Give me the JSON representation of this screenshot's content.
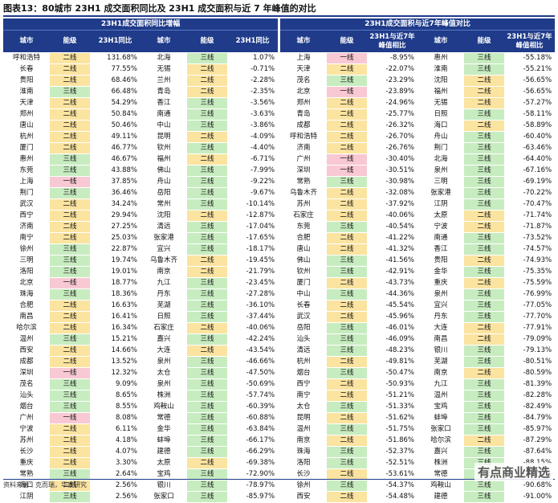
{
  "title": "图表13：80城市 23H1 成交面积同比及 23H1 成交面积与近 7 年峰值的对比",
  "left": {
    "caption": "23H1成交面积同比增幅",
    "headers": [
      "城市",
      "能级",
      "23H1同比",
      "城市",
      "能级",
      "23H1同比"
    ],
    "rows": [
      [
        "呼和浩特",
        "二线",
        "131.68%",
        "北海",
        "三线",
        "1.07%"
      ],
      [
        "长春",
        "二线",
        "77.55%",
        "无锡",
        "二线",
        "-0.71%"
      ],
      [
        "贵阳",
        "二线",
        "68.46%",
        "兰州",
        "二线",
        "-2.28%"
      ],
      [
        "淮南",
        "三线",
        "66.48%",
        "青岛",
        "二线",
        "-2.35%"
      ],
      [
        "天津",
        "二线",
        "54.29%",
        "香江",
        "三线",
        "-3.56%"
      ],
      [
        "郑州",
        "二线",
        "50.84%",
        "南通",
        "三线",
        "-3.63%"
      ],
      [
        "唐山",
        "二线",
        "50.46%",
        "中山",
        "三线",
        "-3.86%"
      ],
      [
        "杭州",
        "二线",
        "49.11%",
        "昆明",
        "二线",
        "-4.09%"
      ],
      [
        "厦门",
        "二线",
        "46.77%",
        "钦州",
        "三线",
        "-4.40%"
      ],
      [
        "惠州",
        "三线",
        "46.67%",
        "福州",
        "二线",
        "-6.71%"
      ],
      [
        "东莞",
        "三线",
        "43.88%",
        "佛山",
        "三线",
        "-7.99%"
      ],
      [
        "上海",
        "一线",
        "37.85%",
        "舟山",
        "三线",
        "-9.22%"
      ],
      [
        "荆门",
        "三线",
        "36.46%",
        "岳阳",
        "三线",
        "-9.67%"
      ],
      [
        "武汉",
        "二线",
        "34.24%",
        "常州",
        "三线",
        "-10.14%"
      ],
      [
        "西宁",
        "二线",
        "29.94%",
        "沈阳",
        "二线",
        "-12.87%"
      ],
      [
        "济南",
        "二线",
        "27.25%",
        "清远",
        "三线",
        "-17.04%"
      ],
      [
        "南宁",
        "二线",
        "25.03%",
        "张家港",
        "三线",
        "-17.65%"
      ],
      [
        "徐州",
        "三线",
        "22.87%",
        "宜兴",
        "三线",
        "-18.17%"
      ],
      [
        "三明",
        "三线",
        "19.74%",
        "乌鲁木齐",
        "二线",
        "-19.45%"
      ],
      [
        "洛阳",
        "三线",
        "19.01%",
        "南京",
        "二线",
        "-21.79%"
      ],
      [
        "北京",
        "一线",
        "18.77%",
        "九江",
        "三线",
        "-23.45%"
      ],
      [
        "珠海",
        "三线",
        "18.36%",
        "丹东",
        "三线",
        "-27.28%"
      ],
      [
        "合肥",
        "二线",
        "16.63%",
        "芜湖",
        "三线",
        "-36.10%"
      ],
      [
        "南昌",
        "二线",
        "16.41%",
        "日照",
        "三线",
        "-37.44%"
      ],
      [
        "哈尔滨",
        "二线",
        "16.34%",
        "石家庄",
        "二线",
        "-40.06%"
      ],
      [
        "温州",
        "三线",
        "15.21%",
        "嘉兴",
        "三线",
        "-42.24%"
      ],
      [
        "西安",
        "二线",
        "14.66%",
        "大连",
        "二线",
        "-43.54%"
      ],
      [
        "成都",
        "二线",
        "13.52%",
        "泉州",
        "三线",
        "-46.66%"
      ],
      [
        "深圳",
        "一线",
        "12.32%",
        "太仓",
        "三线",
        "-47.50%"
      ],
      [
        "茂名",
        "三线",
        "9.09%",
        "泉州",
        "三线",
        "-50.69%"
      ],
      [
        "汕头",
        "三线",
        "8.65%",
        "株洲",
        "三线",
        "-57.74%"
      ],
      [
        "烟台",
        "三线",
        "8.55%",
        "鸡鞍山",
        "三线",
        "-60.39%"
      ],
      [
        "广州",
        "一线",
        "8.08%",
        "常德",
        "三线",
        "-60.88%"
      ],
      [
        "宁波",
        "二线",
        "6.11%",
        "金华",
        "三线",
        "-63.84%"
      ],
      [
        "苏州",
        "二线",
        "4.18%",
        "蚌埠",
        "三线",
        "-66.17%"
      ],
      [
        "长沙",
        "二线",
        "4.07%",
        "建德",
        "三线",
        "-66.29%"
      ],
      [
        "重庆",
        "二线",
        "3.30%",
        "太原",
        "二线",
        "-69.38%"
      ],
      [
        "常熟",
        "三线",
        "2.64%",
        "宝鸡",
        "三线",
        "-72.90%"
      ],
      [
        "海口",
        "二线",
        "2.56%",
        "银川",
        "三线",
        "-78.97%"
      ],
      [
        "江阴",
        "三线",
        "2.56%",
        "张家口",
        "三线",
        "-85.97%"
      ]
    ]
  },
  "right": {
    "caption": "23H1成交面积与近7年峰值对比",
    "headers": [
      "城市",
      "能级",
      "23H1与近7年峰值相比",
      "城市",
      "能级",
      "23H1与近7年峰值相比"
    ],
    "rows": [
      [
        "上海",
        "一线",
        "-8.95%",
        "惠州",
        "三线",
        "-55.18%"
      ],
      [
        "天津",
        "二线",
        "-22.07%",
        "淮南",
        "三线",
        "-55.21%"
      ],
      [
        "茂名",
        "三线",
        "-23.29%",
        "沈阳",
        "二线",
        "-56.65%"
      ],
      [
        "北京",
        "一线",
        "-23.89%",
        "福州",
        "二线",
        "-56.65%"
      ],
      [
        "郑州",
        "二线",
        "-24.96%",
        "无锡",
        "二线",
        "-57.27%"
      ],
      [
        "青岛",
        "二线",
        "-25.77%",
        "日照",
        "三线",
        "-58.11%"
      ],
      [
        "成都",
        "二线",
        "-26.32%",
        "海口",
        "二线",
        "-58.89%"
      ],
      [
        "呼和浩特",
        "二线",
        "-26.70%",
        "舟山",
        "三线",
        "-60.40%"
      ],
      [
        "济南",
        "二线",
        "-26.76%",
        "荆门",
        "三线",
        "-63.46%"
      ],
      [
        "广州",
        "一线",
        "-30.40%",
        "北海",
        "三线",
        "-64.40%"
      ],
      [
        "深圳",
        "一线",
        "-30.51%",
        "泉州",
        "三线",
        "-67.16%"
      ],
      [
        "常熟",
        "三线",
        "-30.98%",
        "三明",
        "三线",
        "-69.19%"
      ],
      [
        "乌鲁木齐",
        "二线",
        "-32.08%",
        "张家港",
        "三线",
        "-70.22%"
      ],
      [
        "苏州",
        "二线",
        "-37.92%",
        "江阴",
        "三线",
        "-70.47%"
      ],
      [
        "石家庄",
        "二线",
        "-40.06%",
        "太原",
        "二线",
        "-71.74%"
      ],
      [
        "东莞",
        "三线",
        "-40.54%",
        "宁波",
        "二线",
        "-71.87%"
      ],
      [
        "合肥",
        "二线",
        "-41.22%",
        "南通",
        "三线",
        "-73.52%"
      ],
      [
        "唐山",
        "二线",
        "-41.32%",
        "香江",
        "三线",
        "-74.57%"
      ],
      [
        "佛山",
        "三线",
        "-41.56%",
        "贵阳",
        "二线",
        "-74.93%"
      ],
      [
        "钦州",
        "三线",
        "-42.91%",
        "金华",
        "三线",
        "-75.35%"
      ],
      [
        "厦门",
        "二线",
        "-43.73%",
        "重庆",
        "二线",
        "-75.59%"
      ],
      [
        "中山",
        "三线",
        "-44.36%",
        "泉州",
        "三线",
        "-76.99%"
      ],
      [
        "长春",
        "二线",
        "-45.54%",
        "宜兴",
        "三线",
        "-77.05%"
      ],
      [
        "武汉",
        "二线",
        "-45.96%",
        "丹东",
        "三线",
        "-77.70%"
      ],
      [
        "岳阳",
        "三线",
        "-46.01%",
        "大连",
        "二线",
        "-77.91%"
      ],
      [
        "汕头",
        "三线",
        "-46.09%",
        "南昌",
        "二线",
        "-79.09%"
      ],
      [
        "清远",
        "三线",
        "-48.23%",
        "银川",
        "三线",
        "-79.13%"
      ],
      [
        "杭州",
        "二线",
        "-49.81%",
        "芜湖",
        "三线",
        "-80.51%"
      ],
      [
        "烟台",
        "三线",
        "-50.47%",
        "南京",
        "二线",
        "-80.59%"
      ],
      [
        "西宁",
        "二线",
        "-50.93%",
        "九江",
        "三线",
        "-81.39%"
      ],
      [
        "南宁",
        "二线",
        "-51.21%",
        "温州",
        "三线",
        "-82.28%"
      ],
      [
        "太仓",
        "三线",
        "-51.33%",
        "宝鸡",
        "三线",
        "-82.49%"
      ],
      [
        "昆明",
        "二线",
        "-51.62%",
        "蚌埠",
        "三线",
        "-84.79%"
      ],
      [
        "温州",
        "三线",
        "-51.75%",
        "张家口",
        "三线",
        "-85.97%"
      ],
      [
        "南京",
        "二线",
        "-51.86%",
        "哈尔滨",
        "二线",
        "-87.29%"
      ],
      [
        "珠海",
        "三线",
        "-52.37%",
        "嘉兴",
        "三线",
        "-87.64%"
      ],
      [
        "洛阳",
        "三线",
        "-52.51%",
        "株洲",
        "三线",
        "-88.15%"
      ],
      [
        "长沙",
        "二线",
        "-53.61%",
        "常德",
        "三线",
        "-88.30%"
      ],
      [
        "徐州",
        "三线",
        "-54.37%",
        "鸡鞍山",
        "三线",
        "-90.68%"
      ],
      [
        "西安",
        "二线",
        "-54.48%",
        "建德",
        "三线",
        "-91.00%"
      ]
    ]
  },
  "footer": "资料来源：克而瑞，华泰研究",
  "watermark": "有点商业精选",
  "colors": {
    "header": "#1f3b8a",
    "tier1": "#f8c8d3",
    "tier2": "#fbe3a0",
    "tier3": "#c7ecc0"
  }
}
